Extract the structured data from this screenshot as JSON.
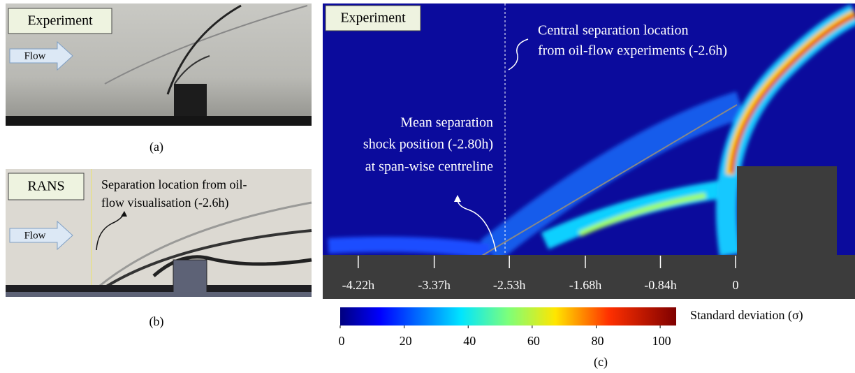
{
  "panel_a": {
    "label_box": "Experiment",
    "flow": "Flow",
    "caption": "(a)"
  },
  "panel_b": {
    "label_box": "RANS",
    "flow": "Flow",
    "annotation": [
      "Separation location from oil-",
      "flow visualisation (-2.6h)"
    ],
    "caption": "(b)"
  },
  "panel_c": {
    "label_box": "Experiment",
    "annotation_top": [
      "Central separation location",
      "from oil-flow experiments (-2.6h)"
    ],
    "annotation_left": [
      "Mean separation",
      "shock position (-2.80h)",
      "at span-wise centreline"
    ],
    "x_ticks": [
      {
        "value": -4.22,
        "label": "-4.22h"
      },
      {
        "value": -3.37,
        "label": "-3.37h"
      },
      {
        "value": -2.53,
        "label": "-2.53h"
      },
      {
        "value": -1.68,
        "label": "-1.68h"
      },
      {
        "value": -0.84,
        "label": "-0.84h"
      },
      0
    ],
    "colorbar": {
      "label": "Standard deviation (σ)",
      "range": [
        0,
        105
      ],
      "ticks": [
        0,
        20,
        40,
        60,
        80,
        100
      ]
    },
    "caption": "(c)"
  }
}
